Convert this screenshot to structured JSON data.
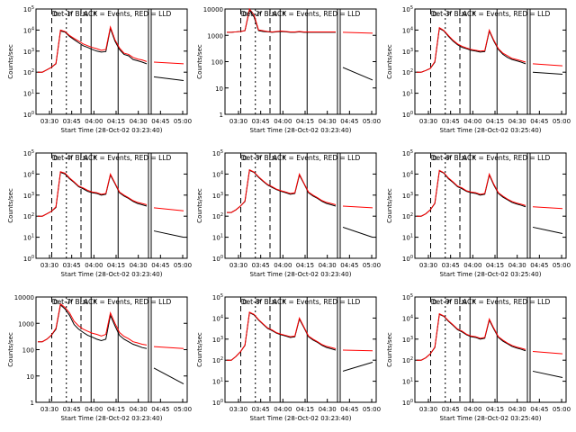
{
  "chart_data": [
    {
      "type": "line",
      "title": "Det-1f BLACK = Events, RED = LLD",
      "ylabel": "Counts/sec",
      "xlabel": "Start Time (28-Oct-02 03:23:40)",
      "yscale": "log",
      "ylim": [
        1,
        100000
      ],
      "yticks": [
        "10^0",
        "10^1",
        "10^2",
        "10^3",
        "10^4",
        "10^5"
      ],
      "xticks": [
        "03:30",
        "03:45",
        "04:00",
        "04:15",
        "04:30",
        "04:45",
        "05:00"
      ],
      "markers": [
        "D",
        "P",
        "N",
        "P"
      ],
      "series": [
        {
          "name": "Events",
          "color": "#000000",
          "values": [
            100,
            100,
            130,
            170,
            250,
            9000,
            8000,
            5000,
            3500,
            2500,
            1800,
            1500,
            1200,
            1000,
            900,
            950,
            12000,
            3000,
            1200,
            700,
            600,
            400,
            350,
            300,
            250,
            60,
            40
          ]
        },
        {
          "name": "LLD",
          "color": "#ff0000",
          "values": [
            100,
            100,
            130,
            170,
            260,
            10000,
            8500,
            5500,
            4000,
            3000,
            2200,
            1800,
            1500,
            1300,
            1100,
            1200,
            14000,
            3500,
            1400,
            800,
            700,
            500,
            420,
            380,
            320,
            300,
            250
          ]
        }
      ]
    },
    {
      "type": "line",
      "title": "Det-2f BLACK = Events, RED = LLD",
      "ylabel": "Counts/sec",
      "xlabel": "Start Time (28-Oct-02 03:23:40)",
      "yscale": "log",
      "ylim": [
        1,
        10000
      ],
      "yticks": [
        "1",
        "10",
        "100",
        "1000",
        "10000"
      ],
      "xticks": [
        "03:30",
        "03:45",
        "04:00",
        "04:15",
        "04:30",
        "04:45",
        "05:00"
      ],
      "markers": [
        "D",
        "P",
        "N",
        "P"
      ],
      "series": [
        {
          "name": "Events",
          "color": "#000000",
          "values": [
            1300,
            1300,
            1350,
            1400,
            1500,
            9000,
            5000,
            1500,
            1400,
            1350,
            1300,
            1350,
            1400,
            1350,
            1300,
            1300,
            1350,
            1300,
            1300,
            1300,
            1300,
            1300,
            1300,
            1300,
            1300,
            60,
            20
          ]
        },
        {
          "name": "LLD",
          "color": "#ff0000",
          "values": [
            1300,
            1300,
            1350,
            1400,
            1500,
            10000,
            6000,
            1600,
            1500,
            1400,
            1350,
            1400,
            1450,
            1400,
            1350,
            1350,
            1400,
            1350,
            1350,
            1350,
            1350,
            1350,
            1350,
            1350,
            1350,
            1300,
            1200
          ]
        }
      ]
    },
    {
      "type": "line",
      "title": "Det-3f BLACK = Events, RED = LLD",
      "ylabel": "Counts/sec",
      "xlabel": "Start Time (28-Oct-02 03:25:40)",
      "yscale": "log",
      "ylim": [
        1,
        100000
      ],
      "yticks": [
        "10^0",
        "10^1",
        "10^2",
        "10^3",
        "10^4",
        "10^5"
      ],
      "xticks": [
        "03:30",
        "03:45",
        "04:00",
        "04:15",
        "04:30",
        "04:45",
        "05:00"
      ],
      "markers": [
        "D",
        "P",
        "N",
        "P"
      ],
      "series": [
        {
          "name": "Events",
          "color": "#000000",
          "values": [
            100,
            100,
            120,
            150,
            300,
            12000,
            9000,
            5000,
            3000,
            2000,
            1500,
            1300,
            1100,
            1000,
            900,
            950,
            9000,
            3000,
            1200,
            700,
            500,
            400,
            350,
            300,
            250,
            100,
            80
          ]
        },
        {
          "name": "LLD",
          "color": "#ff0000",
          "values": [
            100,
            100,
            120,
            150,
            320,
            13000,
            9500,
            5500,
            3300,
            2200,
            1700,
            1400,
            1200,
            1100,
            1000,
            1050,
            10000,
            3300,
            1300,
            800,
            600,
            450,
            400,
            350,
            300,
            250,
            200
          ]
        }
      ]
    },
    {
      "type": "line",
      "title": "Det-4f BLACK = Events, RED = LLD",
      "ylabel": "Counts/sec",
      "xlabel": "Start Time (28-Oct-02 03:23:40)",
      "yscale": "log",
      "ylim": [
        1,
        100000
      ],
      "yticks": [
        "10^0",
        "10^1",
        "10^2",
        "10^3",
        "10^4",
        "10^5"
      ],
      "xticks": [
        "03:30",
        "03:45",
        "04:00",
        "04:15",
        "04:30",
        "04:45",
        "05:00"
      ],
      "markers": [
        "D",
        "P",
        "N",
        "P"
      ],
      "series": [
        {
          "name": "Events",
          "color": "#000000",
          "values": [
            100,
            100,
            130,
            170,
            260,
            12000,
            10000,
            6000,
            4000,
            2500,
            2000,
            1500,
            1300,
            1200,
            1000,
            1100,
            9000,
            3500,
            1300,
            900,
            700,
            500,
            400,
            350,
            300,
            20,
            10
          ]
        },
        {
          "name": "LLD",
          "color": "#ff0000",
          "values": [
            100,
            100,
            130,
            170,
            280,
            13000,
            11000,
            6500,
            4300,
            2700,
            2200,
            1700,
            1400,
            1300,
            1100,
            1200,
            10000,
            3800,
            1400,
            1000,
            750,
            550,
            450,
            400,
            350,
            250,
            180
          ]
        }
      ]
    },
    {
      "type": "line",
      "title": "Det-5f BLACK = Events, RED = LLD",
      "ylabel": "Counts/sec",
      "xlabel": "Start Time (28-Oct-02 03:23:40)",
      "yscale": "log",
      "ylim": [
        1,
        100000
      ],
      "yticks": [
        "10^0",
        "10^1",
        "10^2",
        "10^3",
        "10^4",
        "10^5"
      ],
      "xticks": [
        "03:30",
        "03:45",
        "04:00",
        "04:15",
        "04:30",
        "04:45",
        "05:00"
      ],
      "markers": [
        "D",
        "P",
        "N",
        "P"
      ],
      "series": [
        {
          "name": "Events",
          "color": "#000000",
          "values": [
            150,
            150,
            200,
            300,
            500,
            15000,
            12000,
            7000,
            4500,
            3000,
            2300,
            1800,
            1500,
            1300,
            1100,
            1200,
            9000,
            3500,
            1300,
            900,
            700,
            500,
            400,
            350,
            300,
            30,
            10
          ]
        },
        {
          "name": "LLD",
          "color": "#ff0000",
          "values": [
            150,
            150,
            200,
            300,
            520,
            16000,
            12500,
            7500,
            4800,
            3200,
            2500,
            1900,
            1600,
            1400,
            1200,
            1300,
            10000,
            3700,
            1400,
            1000,
            750,
            550,
            450,
            400,
            350,
            300,
            250
          ]
        }
      ]
    },
    {
      "type": "line",
      "title": "Det-6f BLACK = Events, RED = LLD",
      "ylabel": "Counts/sec",
      "xlabel": "Start Time (28-Oct-02 03:25:40)",
      "yscale": "log",
      "ylim": [
        1,
        100000
      ],
      "yticks": [
        "10^0",
        "10^1",
        "10^2",
        "10^3",
        "10^4",
        "10^5"
      ],
      "xticks": [
        "03:30",
        "03:45",
        "04:00",
        "04:15",
        "04:30",
        "04:45",
        "05:00"
      ],
      "markers": [
        "D",
        "P",
        "N",
        "P"
      ],
      "series": [
        {
          "name": "Events",
          "color": "#000000",
          "values": [
            100,
            100,
            130,
            200,
            400,
            14000,
            11000,
            6000,
            4000,
            2500,
            2000,
            1500,
            1300,
            1200,
            1000,
            1100,
            9000,
            3000,
            1200,
            800,
            600,
            450,
            380,
            330,
            280,
            30,
            15
          ]
        },
        {
          "name": "LLD",
          "color": "#ff0000",
          "values": [
            100,
            100,
            130,
            200,
            420,
            15000,
            11500,
            6500,
            4300,
            2700,
            2200,
            1600,
            1400,
            1300,
            1100,
            1200,
            10000,
            3300,
            1300,
            900,
            650,
            500,
            420,
            370,
            320,
            280,
            230
          ]
        }
      ]
    },
    {
      "type": "line",
      "title": "Det-7f BLACK = Events, RED = LLD",
      "ylabel": "Counts/sec",
      "xlabel": "Start Time (28-Oct-02 03:23:40)",
      "yscale": "log",
      "ylim": [
        1,
        10000
      ],
      "yticks": [
        "1",
        "10",
        "100",
        "1000",
        "10000"
      ],
      "xticks": [
        "03:30",
        "03:45",
        "04:00",
        "04:15",
        "04:30",
        "04:45",
        "05:00"
      ],
      "markers": [
        "D",
        "P",
        "N",
        "P"
      ],
      "series": [
        {
          "name": "Events",
          "color": "#000000",
          "values": [
            200,
            200,
            250,
            350,
            600,
            5000,
            3500,
            2000,
            900,
            600,
            450,
            350,
            300,
            250,
            220,
            250,
            2000,
            800,
            350,
            250,
            200,
            160,
            140,
            120,
            110,
            20,
            5
          ]
        },
        {
          "name": "LLD",
          "color": "#ff0000",
          "values": [
            200,
            200,
            250,
            360,
            650,
            5500,
            4000,
            2500,
            1200,
            800,
            600,
            500,
            420,
            380,
            330,
            380,
            2500,
            1000,
            450,
            320,
            260,
            200,
            180,
            160,
            150,
            130,
            110
          ]
        }
      ]
    },
    {
      "type": "line",
      "title": "Det-8f BLACK = Events, RED = LLD",
      "ylabel": "Counts/sec",
      "xlabel": "Start Time (28-Oct-02 03:23:40)",
      "yscale": "log",
      "ylim": [
        1,
        100000
      ],
      "yticks": [
        "10^0",
        "10^1",
        "10^2",
        "10^3",
        "10^4",
        "10^5"
      ],
      "xticks": [
        "03:30",
        "03:45",
        "04:00",
        "04:15",
        "04:30",
        "04:45",
        "05:00"
      ],
      "markers": [
        "D",
        "P",
        "N",
        "P"
      ],
      "series": [
        {
          "name": "Events",
          "color": "#000000",
          "values": [
            100,
            100,
            150,
            250,
            500,
            18000,
            14000,
            8000,
            5000,
            3200,
            2500,
            1900,
            1600,
            1400,
            1200,
            1300,
            9000,
            3500,
            1300,
            900,
            700,
            500,
            400,
            350,
            300,
            30,
            80
          ]
        },
        {
          "name": "LLD",
          "color": "#ff0000",
          "values": [
            100,
            100,
            150,
            250,
            520,
            19000,
            15000,
            8500,
            5300,
            3400,
            2700,
            2000,
            1700,
            1500,
            1300,
            1400,
            10000,
            3800,
            1400,
            1000,
            750,
            550,
            450,
            400,
            350,
            300,
            280
          ]
        }
      ]
    },
    {
      "type": "line",
      "title": "Det-9f BLACK = Events, RED = LLD",
      "ylabel": "Counts/sec",
      "xlabel": "Start Time (28-Oct-02 03:25:40)",
      "yscale": "log",
      "ylim": [
        1,
        100000
      ],
      "yticks": [
        "10^0",
        "10^1",
        "10^2",
        "10^3",
        "10^4",
        "10^5"
      ],
      "xticks": [
        "03:30",
        "03:45",
        "04:00",
        "04:15",
        "04:30",
        "04:45",
        "05:00"
      ],
      "markers": [
        "D",
        "P",
        "N",
        "P"
      ],
      "series": [
        {
          "name": "Events",
          "color": "#000000",
          "values": [
            100,
            100,
            130,
            200,
            400,
            15000,
            12000,
            7000,
            4500,
            2800,
            2200,
            1600,
            1300,
            1200,
            1000,
            1100,
            8000,
            3000,
            1200,
            800,
            600,
            450,
            380,
            330,
            280,
            30,
            15
          ]
        },
        {
          "name": "LLD",
          "color": "#ff0000",
          "values": [
            100,
            100,
            130,
            200,
            420,
            16000,
            12500,
            7500,
            4800,
            3000,
            2400,
            1700,
            1400,
            1300,
            1100,
            1200,
            9000,
            3300,
            1300,
            900,
            650,
            500,
            420,
            370,
            320,
            260,
            200
          ]
        }
      ]
    }
  ]
}
